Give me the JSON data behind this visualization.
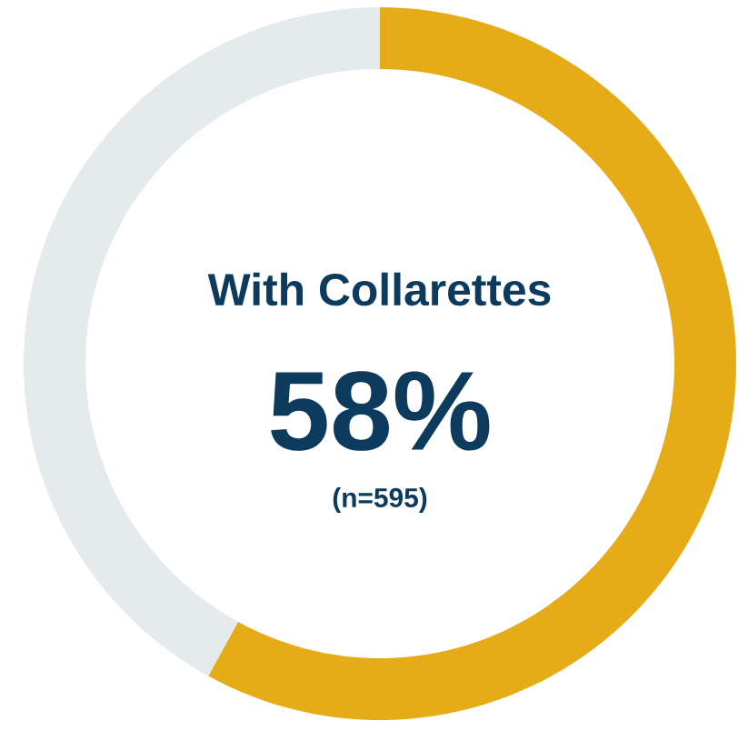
{
  "chart_data": {
    "type": "donut",
    "title": "With Collarettes",
    "categories": [
      null,
      null
    ],
    "values": [
      58,
      42
    ],
    "colors": [
      "#e6ac17",
      "#e5eaed"
    ],
    "value_labels": [
      "58%",
      null
    ],
    "annotations": [
      "(n=595)"
    ]
  }
}
